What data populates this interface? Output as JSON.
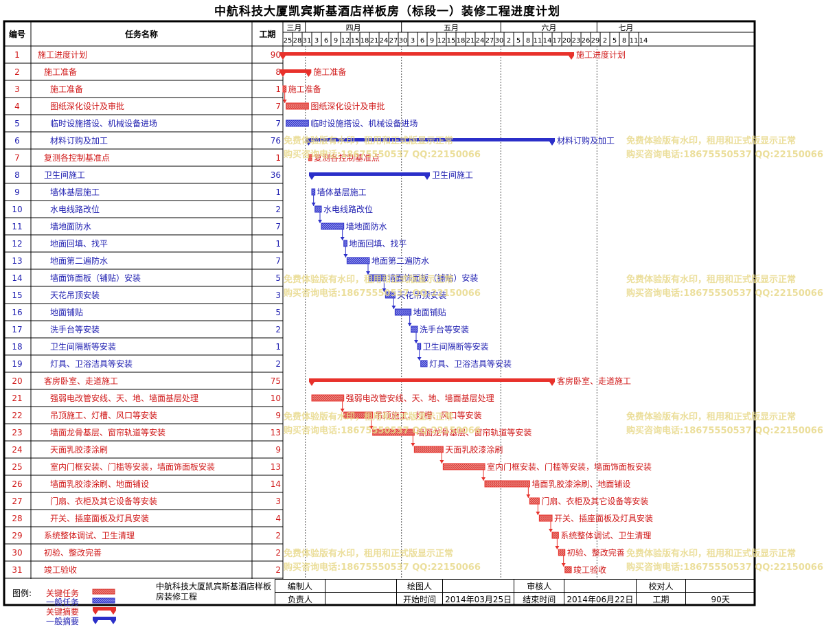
{
  "title": "中航科技大厦凯宾斯基酒店样板房（标段一）装修工程进度计划",
  "headers": {
    "id": "编号",
    "name": "任务名称",
    "dur": "工期"
  },
  "months": [
    {
      "label": "三月",
      "days": [
        "25",
        "28",
        "31"
      ]
    },
    {
      "label": "四月",
      "days": [
        "3",
        "6",
        "9",
        "12",
        "15",
        "18",
        "21",
        "24",
        "27",
        "30"
      ]
    },
    {
      "label": "五月",
      "days": [
        "3",
        "6",
        "9",
        "12",
        "15",
        "18",
        "21",
        "24",
        "27",
        "30"
      ]
    },
    {
      "label": "六月",
      "days": [
        "2",
        "5",
        "8",
        "11",
        "14",
        "17",
        "20",
        "23",
        "26",
        "29"
      ]
    },
    {
      "label": "七月",
      "days": [
        "2",
        "5",
        "8",
        "11",
        "14"
      ]
    }
  ],
  "chart_data": {
    "type": "gantt",
    "start_date": "2014-03-25",
    "tasks": [
      {
        "id": "1",
        "name": "施工进度计划",
        "dur": "90",
        "start": "2014-03-25",
        "end": "2014-06-22",
        "kind": "critical-summary",
        "label": "施工进度计划",
        "level": 0
      },
      {
        "id": "2",
        "name": "施工准备",
        "dur": "8",
        "start": "2014-03-25",
        "end": "2014-04-01",
        "kind": "critical-summary",
        "label": "施工准备",
        "level": 1
      },
      {
        "id": "3",
        "name": "施工准备",
        "dur": "1",
        "start": "2014-03-25",
        "end": "2014-03-25",
        "kind": "critical",
        "label": "施工准备",
        "level": 2
      },
      {
        "id": "4",
        "name": "图纸深化设计及审批",
        "dur": "7",
        "start": "2014-03-26",
        "end": "2014-04-01",
        "kind": "critical",
        "label": "图纸深化设计及审批",
        "level": 2
      },
      {
        "id": "5",
        "name": "临时设施搭设、机械设备进场",
        "dur": "7",
        "start": "2014-03-26",
        "end": "2014-04-01",
        "kind": "normal",
        "label": "临时设施搭设、机械设备进场",
        "level": 2
      },
      {
        "id": "6",
        "name": "材料订购及加工",
        "dur": "76",
        "start": "2014-04-02",
        "end": "2014-06-16",
        "kind": "normal-summary",
        "label": "材料订购及加工",
        "level": 2
      },
      {
        "id": "7",
        "name": "复测各控制基准点",
        "dur": "1",
        "start": "2014-04-02",
        "end": "2014-04-02",
        "kind": "critical",
        "label": "复测各控制基准点",
        "level": 1
      },
      {
        "id": "8",
        "name": "卫生间施工",
        "dur": "36",
        "start": "2014-04-03",
        "end": "2014-05-08",
        "kind": "normal-summary",
        "label": "卫生间施工",
        "level": 1
      },
      {
        "id": "9",
        "name": "墙体基层施工",
        "dur": "1",
        "start": "2014-04-03",
        "end": "2014-04-03",
        "kind": "normal",
        "label": "墙体基层施工",
        "level": 2
      },
      {
        "id": "10",
        "name": "水电线路改位",
        "dur": "2",
        "start": "2014-04-04",
        "end": "2014-04-05",
        "kind": "normal",
        "label": "水电线路改位",
        "level": 2
      },
      {
        "id": "11",
        "name": "墙地面防水",
        "dur": "7",
        "start": "2014-04-06",
        "end": "2014-04-12",
        "kind": "normal",
        "label": "墙地面防水",
        "level": 2
      },
      {
        "id": "12",
        "name": "地面回填、找平",
        "dur": "1",
        "start": "2014-04-13",
        "end": "2014-04-13",
        "kind": "normal",
        "label": "地面回填、找平",
        "level": 2
      },
      {
        "id": "13",
        "name": "地面第二遍防水",
        "dur": "7",
        "start": "2014-04-14",
        "end": "2014-04-20",
        "kind": "normal",
        "label": "地面第二遍防水",
        "level": 2
      },
      {
        "id": "14",
        "name": "墙面饰面板（铺贴）安装",
        "dur": "5",
        "start": "2014-04-21",
        "end": "2014-04-25",
        "kind": "normal",
        "label": "墙面饰面板（铺贴）安装",
        "level": 2
      },
      {
        "id": "15",
        "name": "天花吊顶安装",
        "dur": "3",
        "start": "2014-04-26",
        "end": "2014-04-28",
        "kind": "normal",
        "label": "天花吊顶安装",
        "level": 2
      },
      {
        "id": "16",
        "name": "地面铺贴",
        "dur": "5",
        "start": "2014-04-29",
        "end": "2014-05-03",
        "kind": "normal",
        "label": "地面铺贴",
        "level": 2
      },
      {
        "id": "17",
        "name": "洗手台等安装",
        "dur": "2",
        "start": "2014-05-04",
        "end": "2014-05-05",
        "kind": "normal",
        "label": "洗手台等安装",
        "level": 2
      },
      {
        "id": "18",
        "name": "卫生间隔断等安装",
        "dur": "1",
        "start": "2014-05-06",
        "end": "2014-05-06",
        "kind": "normal",
        "label": "卫生间隔断等安装",
        "level": 2
      },
      {
        "id": "19",
        "name": "灯具、卫浴洁具等安装",
        "dur": "2",
        "start": "2014-05-07",
        "end": "2014-05-08",
        "kind": "normal",
        "label": "灯具、卫浴洁具等安装",
        "level": 2
      },
      {
        "id": "20",
        "name": "客房卧室、走道施工",
        "dur": "75",
        "start": "2014-04-03",
        "end": "2014-06-16",
        "kind": "critical-summary",
        "label": "客房卧室、走道施工",
        "level": 1
      },
      {
        "id": "21",
        "name": "强弱电改管安线、天、地、墙面基层处理",
        "dur": "10",
        "start": "2014-04-03",
        "end": "2014-04-12",
        "kind": "critical",
        "label": "强弱电改管安线、天、地、墙面基层处理",
        "level": 2
      },
      {
        "id": "22",
        "name": "吊顶施工、灯槽、风口等安装",
        "dur": "9",
        "start": "2014-04-13",
        "end": "2014-04-21",
        "kind": "critical",
        "label": "吊顶施工、灯槽、风口等安装",
        "level": 2
      },
      {
        "id": "23",
        "name": "墙面龙骨基层、窗帘轨道等安装",
        "dur": "13",
        "start": "2014-04-22",
        "end": "2014-05-04",
        "kind": "critical",
        "label": "墙面龙骨基层、窗帘轨道等安装",
        "level": 2
      },
      {
        "id": "24",
        "name": "天面乳胶漆涂刷",
        "dur": "9",
        "start": "2014-05-05",
        "end": "2014-05-13",
        "kind": "critical",
        "label": "天面乳胶漆涂刷",
        "level": 2
      },
      {
        "id": "25",
        "name": "室内门框安装、门槛等安装，墙面饰面板安装",
        "dur": "13",
        "start": "2014-05-14",
        "end": "2014-05-26",
        "kind": "critical",
        "label": "室内门框安装、门槛等安装，墙面饰面板安装",
        "level": 2
      },
      {
        "id": "26",
        "name": "墙面乳胶漆涂刷、地面铺设",
        "dur": "14",
        "start": "2014-05-27",
        "end": "2014-06-09",
        "kind": "critical",
        "label": "墙面乳胶漆涂刷、地面铺设",
        "level": 2
      },
      {
        "id": "27",
        "name": "门扇、衣柜及其它设备等安装",
        "dur": "3",
        "start": "2014-06-10",
        "end": "2014-06-12",
        "kind": "critical",
        "label": "门扇、衣柜及其它设备等安装",
        "level": 2
      },
      {
        "id": "28",
        "name": "开关、插座面板及灯具安装",
        "dur": "4",
        "start": "2014-06-13",
        "end": "2014-06-16",
        "kind": "critical",
        "label": "开关、插座面板及灯具安装",
        "level": 2
      },
      {
        "id": "29",
        "name": "系统整体调试、卫生清理",
        "dur": "2",
        "start": "2014-06-17",
        "end": "2014-06-18",
        "kind": "critical",
        "label": "系统整体调试、卫生清理",
        "level": 1
      },
      {
        "id": "30",
        "name": "初验、整改完善",
        "dur": "2",
        "start": "2014-06-19",
        "end": "2014-06-20",
        "kind": "critical",
        "label": "初验、整改完善",
        "level": 1
      },
      {
        "id": "31",
        "name": "竣工验收",
        "dur": "2",
        "start": "2014-06-21",
        "end": "2014-06-22",
        "kind": "critical",
        "label": "竣工验收",
        "level": 1
      }
    ]
  },
  "colors": {
    "critical": "#e8312b",
    "normal": "#2b2fc9",
    "critical_text": "#d01818",
    "normal_text": "#1d1db0"
  },
  "watermark": {
    "line1": "免费体验版有水印，租用和正式版显示正常",
    "line2": "购买咨询电话:18675550537 QQ:22150066"
  },
  "legend": {
    "title": "图例:",
    "items": [
      "关键任务",
      "一般任务",
      "关键摘要",
      "一般摘要"
    ]
  },
  "footer": {
    "project_name": "中航科技大厦凯宾斯基酒店样板房装修工程",
    "row1": [
      "编制人",
      "",
      "绘图人",
      "",
      "审核人",
      "",
      "校对人",
      ""
    ],
    "row2": [
      "负责人",
      "",
      "开始时间",
      "2014年03月25日",
      "结束时间",
      "2014年06月22日",
      "工期",
      "90天"
    ]
  }
}
